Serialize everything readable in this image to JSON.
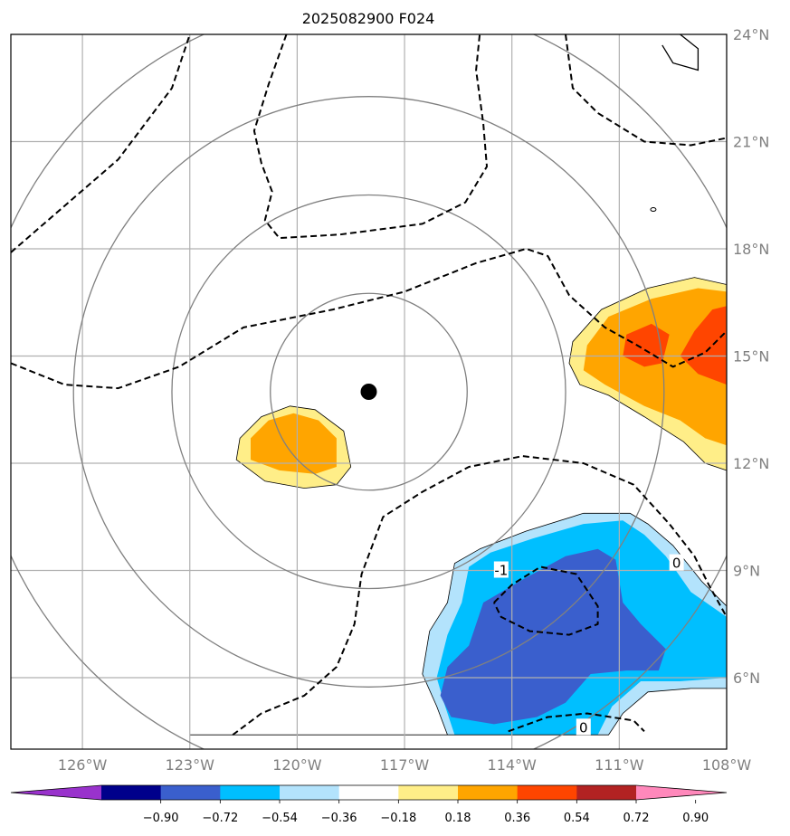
{
  "title": "2025082900 F024",
  "map": {
    "lon_range": [
      -128,
      -108
    ],
    "lat_range": [
      4,
      24
    ],
    "center": {
      "lon": -118,
      "lat": 14
    },
    "range_rings_deg": [
      2.75,
      5.5,
      8.25,
      11.0
    ],
    "lon_ticks": [
      {
        "value": -126,
        "label": "126°W"
      },
      {
        "value": -123,
        "label": "123°W"
      },
      {
        "value": -120,
        "label": "120°W"
      },
      {
        "value": -117,
        "label": "117°W"
      },
      {
        "value": -114,
        "label": "114°W"
      },
      {
        "value": -111,
        "label": "111°W"
      },
      {
        "value": -108,
        "label": "108°W"
      }
    ],
    "lat_ticks": [
      {
        "value": 6,
        "label": "6°N"
      },
      {
        "value": 9,
        "label": "9°N"
      },
      {
        "value": 12,
        "label": "12°N"
      },
      {
        "value": 15,
        "label": "15°N"
      },
      {
        "value": 18,
        "label": "18°N"
      },
      {
        "value": 21,
        "label": "21°N"
      },
      {
        "value": 24,
        "label": "24°N"
      }
    ],
    "contour_labels": [
      {
        "text": "-1",
        "lon": -114.3,
        "lat": 9.0
      },
      {
        "text": "0",
        "lon": -109.4,
        "lat": 9.2
      },
      {
        "text": "0",
        "lon": -112.0,
        "lat": 4.6
      }
    ],
    "dashed_contours": [
      [
        [
          -128,
          17.9
        ],
        [
          -126.5,
          19.2
        ],
        [
          -125,
          20.5
        ],
        [
          -123.5,
          22.5
        ],
        [
          -123,
          24
        ]
      ],
      [
        [
          -120.3,
          24
        ],
        [
          -120.8,
          22.6
        ],
        [
          -121.2,
          21.3
        ],
        [
          -121,
          20.4
        ],
        [
          -120.7,
          19.6
        ],
        [
          -120.9,
          18.8
        ],
        [
          -120.5,
          18.3
        ],
        [
          -118.8,
          18.4
        ],
        [
          -116.5,
          18.7
        ],
        [
          -115.3,
          19.3
        ],
        [
          -114.7,
          20.3
        ],
        [
          -114.8,
          21.5
        ],
        [
          -115,
          23
        ],
        [
          -114.9,
          24
        ]
      ],
      [
        [
          -112.5,
          24
        ],
        [
          -112.3,
          22.5
        ],
        [
          -111.6,
          21.8
        ],
        [
          -110.3,
          21
        ],
        [
          -109,
          20.9
        ],
        [
          -108,
          21.1
        ]
      ],
      [
        [
          -128,
          14.8
        ],
        [
          -126.5,
          14.2
        ],
        [
          -125,
          14.1
        ],
        [
          -123.3,
          14.7
        ],
        [
          -121.5,
          15.8
        ],
        [
          -119,
          16.3
        ],
        [
          -117,
          16.8
        ],
        [
          -115,
          17.6
        ],
        [
          -113.6,
          18
        ],
        [
          -113,
          17.8
        ],
        [
          -112.4,
          16.7
        ],
        [
          -111.4,
          15.8
        ],
        [
          -110.5,
          15.3
        ],
        [
          -109.5,
          14.7
        ],
        [
          -108.6,
          15.1
        ],
        [
          -108,
          15.7
        ]
      ],
      [
        [
          -121.8,
          4.4
        ],
        [
          -121,
          5
        ],
        [
          -119.8,
          5.5
        ],
        [
          -118.9,
          6.3
        ],
        [
          -118.4,
          7.5
        ],
        [
          -118.2,
          8.9
        ],
        [
          -117.6,
          10.5
        ],
        [
          -116.5,
          11.2
        ],
        [
          -115.2,
          11.9
        ],
        [
          -113.7,
          12.2
        ],
        [
          -112,
          12
        ],
        [
          -110.6,
          11.4
        ],
        [
          -109.6,
          10.3
        ],
        [
          -108.9,
          9.4
        ],
        [
          -108.5,
          8.6
        ],
        [
          -108,
          7.7
        ]
      ],
      [
        [
          -114.5,
          8.1
        ],
        [
          -114,
          8.6
        ],
        [
          -113.2,
          9.1
        ],
        [
          -112.2,
          8.9
        ],
        [
          -111.6,
          8
        ],
        [
          -111.6,
          7.5
        ],
        [
          -112.4,
          7.2
        ],
        [
          -113.5,
          7.3
        ],
        [
          -114.3,
          7.7
        ],
        [
          -114.5,
          8.1
        ]
      ],
      [
        [
          -114.1,
          4.5
        ],
        [
          -113,
          4.9
        ],
        [
          -111.9,
          5
        ],
        [
          -110.6,
          4.8
        ],
        [
          -110.3,
          4.5
        ]
      ]
    ],
    "shaded_regions": [
      {
        "color": "#ffee88",
        "points": [
          [
            -112.3,
            15.4
          ],
          [
            -111.5,
            16.3
          ],
          [
            -110.2,
            16.9
          ],
          [
            -108.9,
            17.2
          ],
          [
            -108,
            17
          ],
          [
            -108,
            11.8
          ],
          [
            -108.6,
            12
          ],
          [
            -109.2,
            12.6
          ],
          [
            -110.3,
            13.3
          ],
          [
            -111.3,
            13.9
          ],
          [
            -112.1,
            14.2
          ],
          [
            -112.4,
            14.8
          ]
        ]
      },
      {
        "color": "#ffa500",
        "points": [
          [
            -111.9,
            15.3
          ],
          [
            -111.3,
            16.1
          ],
          [
            -110.1,
            16.6
          ],
          [
            -108.8,
            16.9
          ],
          [
            -108,
            16.8
          ],
          [
            -108,
            12.5
          ],
          [
            -108.6,
            12.7
          ],
          [
            -109.3,
            13.2
          ],
          [
            -110.3,
            13.6
          ],
          [
            -111.4,
            14.2
          ],
          [
            -112,
            14.6
          ]
        ]
      },
      {
        "color": "#ff4500",
        "points": [
          [
            -110.8,
            15.6
          ],
          [
            -110.1,
            15.9
          ],
          [
            -109.6,
            15.6
          ],
          [
            -109.8,
            14.8
          ],
          [
            -110.3,
            14.7
          ],
          [
            -110.9,
            15
          ]
        ]
      },
      {
        "color": "#ff4500",
        "points": [
          [
            -108.4,
            16.3
          ],
          [
            -108,
            16.4
          ],
          [
            -108,
            14.2
          ],
          [
            -108.8,
            14.5
          ],
          [
            -109.3,
            15
          ],
          [
            -108.9,
            15.7
          ]
        ]
      },
      {
        "color": "#ffee88",
        "points": [
          [
            -121.6,
            12.7
          ],
          [
            -121,
            13.3
          ],
          [
            -120.2,
            13.6
          ],
          [
            -119.5,
            13.5
          ],
          [
            -118.7,
            12.9
          ],
          [
            -118.5,
            11.9
          ],
          [
            -118.9,
            11.4
          ],
          [
            -119.8,
            11.3
          ],
          [
            -120.9,
            11.5
          ],
          [
            -121.7,
            12.1
          ]
        ]
      },
      {
        "color": "#ffa500",
        "points": [
          [
            -121.3,
            12.7
          ],
          [
            -120.8,
            13.2
          ],
          [
            -120.1,
            13.4
          ],
          [
            -119.4,
            13.2
          ],
          [
            -118.9,
            12.7
          ],
          [
            -118.9,
            11.9
          ],
          [
            -119.5,
            11.7
          ],
          [
            -120.5,
            11.8
          ],
          [
            -121.3,
            12.1
          ]
        ]
      },
      {
        "color": "#b3e3fc",
        "points": [
          [
            -114.9,
            9.6
          ],
          [
            -113.6,
            10.1
          ],
          [
            -112,
            10.6
          ],
          [
            -110.7,
            10.6
          ],
          [
            -110.2,
            10.3
          ],
          [
            -109.5,
            9.7
          ],
          [
            -108.7,
            8.7
          ],
          [
            -108,
            8
          ],
          [
            -108,
            5.7
          ],
          [
            -109,
            5.7
          ],
          [
            -110.2,
            5.6
          ],
          [
            -110.9,
            5
          ],
          [
            -111.3,
            4.4
          ],
          [
            -123,
            4.4
          ],
          [
            -123,
            4.4
          ],
          [
            -115.8,
            4.4
          ],
          [
            -116.1,
            5.2
          ],
          [
            -116.5,
            6.1
          ],
          [
            -116.3,
            7.3
          ],
          [
            -115.8,
            8.1
          ],
          [
            -115.6,
            9.2
          ]
        ]
      },
      {
        "color": "#00bfff",
        "points": [
          [
            -114.6,
            9.5
          ],
          [
            -113.4,
            9.9
          ],
          [
            -112,
            10.3
          ],
          [
            -110.9,
            10.4
          ],
          [
            -110.3,
            10
          ],
          [
            -109.7,
            9.4
          ],
          [
            -109,
            8.4
          ],
          [
            -108,
            7.7
          ],
          [
            -108,
            6
          ],
          [
            -109.3,
            5.9
          ],
          [
            -110.4,
            5.9
          ],
          [
            -111.2,
            5.2
          ],
          [
            -111.6,
            4.4
          ],
          [
            -115.6,
            4.4
          ],
          [
            -115.9,
            5.3
          ],
          [
            -116.1,
            6
          ],
          [
            -115.8,
            7.2
          ],
          [
            -115.4,
            8.1
          ],
          [
            -115.2,
            9.1
          ]
        ]
      },
      {
        "color": "#3a5fcd",
        "points": [
          [
            -114.8,
            8.1
          ],
          [
            -113.6,
            8.8
          ],
          [
            -112.5,
            9.4
          ],
          [
            -111.6,
            9.6
          ],
          [
            -111.1,
            9.3
          ],
          [
            -110.9,
            8.1
          ],
          [
            -110.4,
            7.5
          ],
          [
            -109.7,
            6.8
          ],
          [
            -109.9,
            6.2
          ],
          [
            -110.8,
            6.2
          ],
          [
            -111.8,
            6.1
          ],
          [
            -112.5,
            5.3
          ],
          [
            -113.3,
            4.9
          ],
          [
            -114.5,
            4.7
          ],
          [
            -115.7,
            4.9
          ],
          [
            -116,
            5.5
          ],
          [
            -115.8,
            6.3
          ],
          [
            -115.2,
            6.9
          ]
        ]
      }
    ],
    "coastline": [
      [
        -109.3,
        24
      ],
      [
        -108.8,
        23.6
      ],
      [
        -108.8,
        23
      ],
      [
        -109.5,
        23.2
      ],
      [
        -109.8,
        23.7
      ]
    ],
    "islet": {
      "lon": -110.05,
      "lat": 19.1
    }
  },
  "colorbar": {
    "colors": [
      "#9932cc",
      "#00008b",
      "#3a5fcd",
      "#00bfff",
      "#b3e3fc",
      "#ffffff",
      "#ffee88",
      "#ffa500",
      "#ff4500",
      "#b22222",
      "#ff88bb"
    ],
    "labels": [
      "−0.90",
      "−0.72",
      "−0.54",
      "−0.36",
      "−0.18",
      "0.18",
      "0.36",
      "0.54",
      "0.72",
      "0.90"
    ]
  }
}
